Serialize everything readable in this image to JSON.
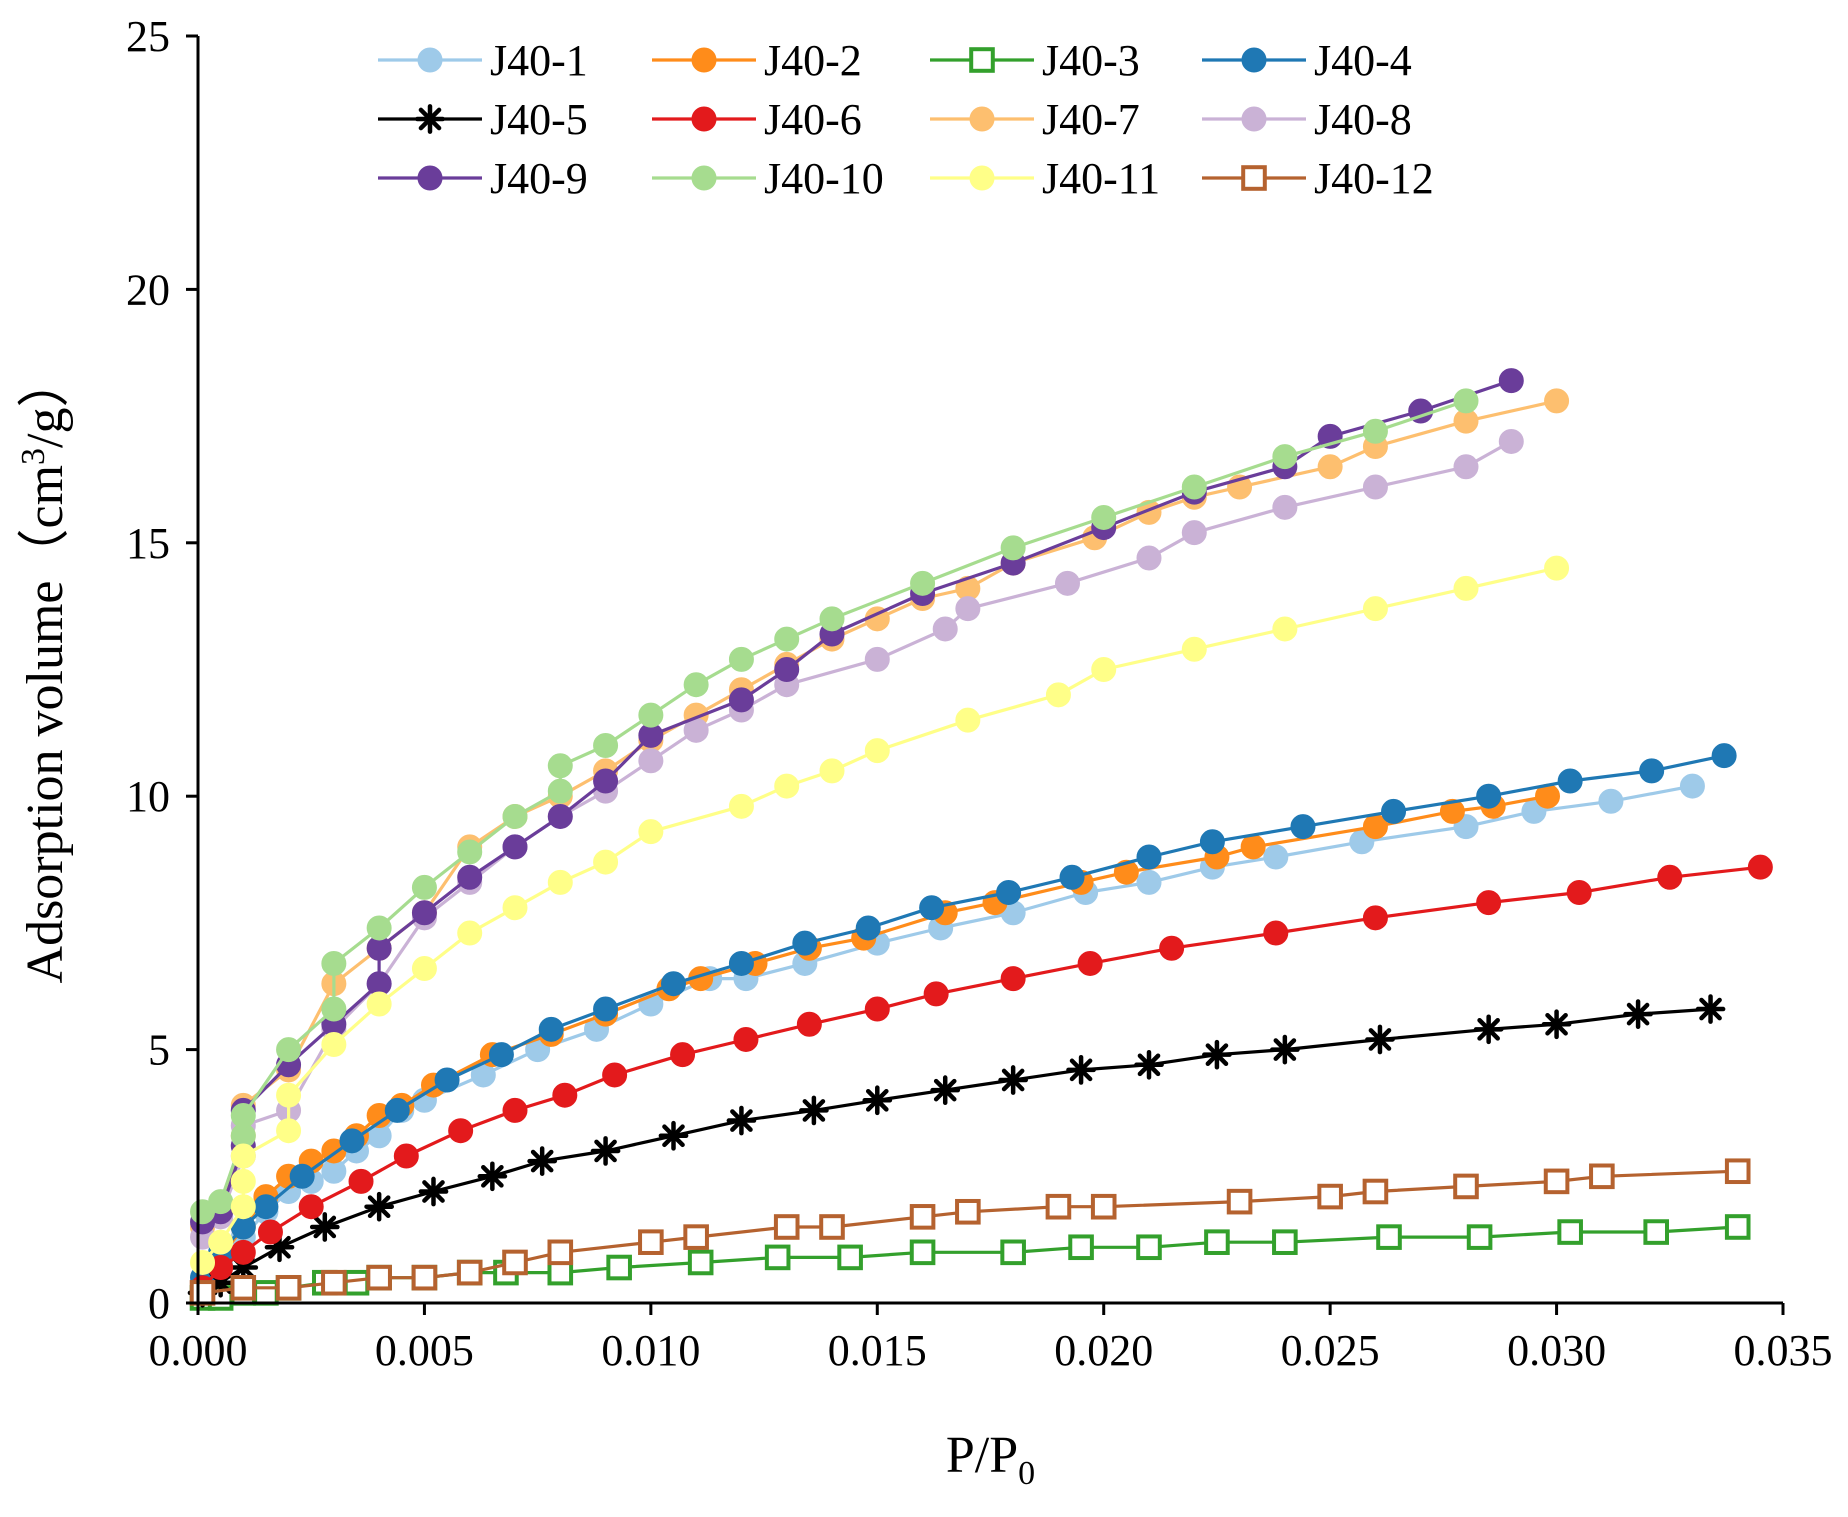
{
  "chart_data": {
    "type": "line",
    "title": "",
    "xlabel": "P/P",
    "xlabel_sub": "0",
    "ylabel": "Adsorption volume（cm",
    "ylabel_sup": "3",
    "ylabel_end": "/g）",
    "xlim": [
      0,
      0.035
    ],
    "ylim": [
      0,
      25
    ],
    "x_ticks": [
      0,
      0.005,
      0.01,
      0.015,
      0.02,
      0.025,
      0.03,
      0.035
    ],
    "x_tick_labels": [
      "0.000",
      "0.005",
      "0.010",
      "0.015",
      "0.020",
      "0.025",
      "0.030",
      "0.035"
    ],
    "y_ticks": [
      0,
      5,
      10,
      15,
      20,
      25
    ],
    "y_tick_labels": [
      "0",
      "5",
      "10",
      "15",
      "20",
      "25"
    ],
    "grid": false,
    "legend_position": "top",
    "series": [
      {
        "name": "J40-1",
        "color": "#9ecae9",
        "marker": "circle",
        "x": [
          0.0001,
          0.0005,
          0.001,
          0.0015,
          0.002,
          0.0025,
          0.003,
          0.0035,
          0.004,
          0.0045,
          0.005,
          0.0063,
          0.0075,
          0.0088,
          0.01,
          0.0113,
          0.0121,
          0.0134,
          0.015,
          0.0164,
          0.018,
          0.0196,
          0.021,
          0.0224,
          0.0238,
          0.0257,
          0.028,
          0.0295,
          0.0312,
          0.033
        ],
        "y": [
          0.3,
          0.8,
          1.3,
          1.8,
          2.2,
          2.4,
          2.6,
          3.0,
          3.3,
          3.8,
          4.0,
          4.5,
          5.0,
          5.4,
          5.9,
          6.4,
          6.4,
          6.7,
          7.1,
          7.4,
          7.7,
          8.1,
          8.3,
          8.6,
          8.8,
          9.1,
          9.4,
          9.7,
          9.9,
          10.2
        ]
      },
      {
        "name": "J40-2",
        "color": "#ff8c1a",
        "marker": "circle",
        "x": [
          0.0001,
          0.0005,
          0.001,
          0.0015,
          0.002,
          0.0025,
          0.003,
          0.0035,
          0.004,
          0.0045,
          0.0052,
          0.0065,
          0.0078,
          0.009,
          0.0104,
          0.0111,
          0.0123,
          0.0135,
          0.0147,
          0.0165,
          0.0176,
          0.0195,
          0.0205,
          0.0225,
          0.0233,
          0.026,
          0.0277,
          0.0286,
          0.0298
        ],
        "y": [
          0.4,
          0.9,
          1.5,
          2.1,
          2.5,
          2.8,
          3.0,
          3.3,
          3.7,
          3.9,
          4.3,
          4.9,
          5.3,
          5.7,
          6.2,
          6.4,
          6.7,
          7.0,
          7.2,
          7.7,
          7.9,
          8.3,
          8.5,
          8.8,
          9.0,
          9.4,
          9.7,
          9.8,
          10.0
        ]
      },
      {
        "name": "J40-3",
        "color": "#33a02c",
        "marker": "square-open",
        "x": [
          0.0001,
          0.0005,
          0.001,
          0.0015,
          0.002,
          0.0028,
          0.0035,
          0.004,
          0.005,
          0.006,
          0.0068,
          0.008,
          0.0093,
          0.0111,
          0.0128,
          0.0144,
          0.016,
          0.018,
          0.0195,
          0.021,
          0.0225,
          0.024,
          0.0263,
          0.0283,
          0.0303,
          0.0322,
          0.034
        ],
        "y": [
          0.1,
          0.1,
          0.2,
          0.2,
          0.3,
          0.4,
          0.4,
          0.5,
          0.5,
          0.6,
          0.6,
          0.6,
          0.7,
          0.8,
          0.9,
          0.9,
          1.0,
          1.0,
          1.1,
          1.1,
          1.2,
          1.2,
          1.3,
          1.3,
          1.4,
          1.4,
          1.5
        ]
      },
      {
        "name": "J40-4",
        "color": "#1f78b4",
        "marker": "circle",
        "x": [
          0.0001,
          0.0005,
          0.001,
          0.0015,
          0.0023,
          0.0034,
          0.0044,
          0.0055,
          0.0067,
          0.0078,
          0.009,
          0.0105,
          0.012,
          0.0134,
          0.0148,
          0.0162,
          0.0179,
          0.0193,
          0.021,
          0.0224,
          0.0244,
          0.0264,
          0.0285,
          0.0303,
          0.0321,
          0.0337
        ],
        "y": [
          0.5,
          1.0,
          1.5,
          1.9,
          2.5,
          3.2,
          3.8,
          4.4,
          4.9,
          5.4,
          5.8,
          6.3,
          6.7,
          7.1,
          7.4,
          7.8,
          8.1,
          8.4,
          8.8,
          9.1,
          9.4,
          9.7,
          10.0,
          10.3,
          10.5,
          10.8
        ]
      },
      {
        "name": "J40-5",
        "color": "#000000",
        "marker": "asterisk",
        "x": [
          0.0001,
          0.0005,
          0.001,
          0.0018,
          0.0028,
          0.004,
          0.0052,
          0.0065,
          0.0076,
          0.009,
          0.0105,
          0.012,
          0.0136,
          0.015,
          0.0165,
          0.018,
          0.0195,
          0.021,
          0.0225,
          0.024,
          0.0261,
          0.0285,
          0.03,
          0.0318,
          0.0334
        ],
        "y": [
          0.2,
          0.4,
          0.7,
          1.1,
          1.5,
          1.9,
          2.2,
          2.5,
          2.8,
          3.0,
          3.3,
          3.6,
          3.8,
          4.0,
          4.2,
          4.4,
          4.6,
          4.7,
          4.9,
          5.0,
          5.2,
          5.4,
          5.5,
          5.7,
          5.8
        ]
      },
      {
        "name": "J40-6",
        "color": "#e31a1c",
        "marker": "circle",
        "x": [
          0.0001,
          0.0005,
          0.001,
          0.0016,
          0.0025,
          0.0036,
          0.0046,
          0.0058,
          0.007,
          0.0081,
          0.0092,
          0.0107,
          0.0121,
          0.0135,
          0.015,
          0.0163,
          0.018,
          0.0197,
          0.0215,
          0.0238,
          0.026,
          0.0285,
          0.0305,
          0.0325,
          0.0345
        ],
        "y": [
          0.3,
          0.7,
          1.0,
          1.4,
          1.9,
          2.4,
          2.9,
          3.4,
          3.8,
          4.1,
          4.5,
          4.9,
          5.2,
          5.5,
          5.8,
          6.1,
          6.4,
          6.7,
          7.0,
          7.3,
          7.6,
          7.9,
          8.1,
          8.4,
          8.6
        ]
      },
      {
        "name": "J40-7",
        "color": "#fdbf6f",
        "marker": "circle",
        "x": [
          0.0001,
          0.0005,
          0.001,
          0.001,
          0.002,
          0.003,
          0.004,
          0.005,
          0.006,
          0.007,
          0.008,
          0.009,
          0.01,
          0.011,
          0.012,
          0.013,
          0.014,
          0.015,
          0.016,
          0.017,
          0.018,
          0.0198,
          0.021,
          0.022,
          0.023,
          0.025,
          0.026,
          0.028,
          0.03
        ],
        "y": [
          1.5,
          1.9,
          3.3,
          3.9,
          4.6,
          6.3,
          7.0,
          7.7,
          9.0,
          9.6,
          10.0,
          10.5,
          11.1,
          11.6,
          12.1,
          12.6,
          13.1,
          13.5,
          13.9,
          14.1,
          14.6,
          15.1,
          15.6,
          15.9,
          16.1,
          16.5,
          16.9,
          17.4,
          17.8
        ]
      },
      {
        "name": "J40-8",
        "color": "#cab2d6",
        "marker": "circle",
        "x": [
          0.0001,
          0.0005,
          0.001,
          0.001,
          0.002,
          0.003,
          0.004,
          0.005,
          0.006,
          0.007,
          0.008,
          0.009,
          0.01,
          0.011,
          0.012,
          0.013,
          0.015,
          0.0165,
          0.017,
          0.0192,
          0.021,
          0.022,
          0.024,
          0.026,
          0.028,
          0.029
        ],
        "y": [
          1.3,
          1.7,
          2.9,
          3.5,
          3.8,
          5.4,
          6.3,
          7.6,
          8.3,
          9.0,
          9.6,
          10.1,
          10.7,
          11.3,
          11.7,
          12.2,
          12.7,
          13.3,
          13.7,
          14.2,
          14.7,
          15.2,
          15.7,
          16.1,
          16.5,
          17.0
        ]
      },
      {
        "name": "J40-9",
        "color": "#6a3d9a",
        "marker": "circle",
        "x": [
          0.0001,
          0.0005,
          0.001,
          0.001,
          0.002,
          0.003,
          0.004,
          0.004,
          0.005,
          0.006,
          0.007,
          0.008,
          0.009,
          0.01,
          0.012,
          0.013,
          0.014,
          0.016,
          0.018,
          0.02,
          0.022,
          0.024,
          0.025,
          0.027,
          0.029
        ],
        "y": [
          1.6,
          1.8,
          3.1,
          3.8,
          4.7,
          5.5,
          6.3,
          7.0,
          7.7,
          8.4,
          9.0,
          9.6,
          10.3,
          11.2,
          11.9,
          12.5,
          13.2,
          14.0,
          14.6,
          15.3,
          16.0,
          16.5,
          17.1,
          17.6,
          18.2
        ]
      },
      {
        "name": "J40-10",
        "color": "#a6dc8f",
        "marker": "circle",
        "x": [
          0.0001,
          0.0005,
          0.001,
          0.001,
          0.002,
          0.003,
          0.003,
          0.004,
          0.005,
          0.006,
          0.007,
          0.008,
          0.008,
          0.009,
          0.01,
          0.011,
          0.012,
          0.013,
          0.014,
          0.016,
          0.018,
          0.02,
          0.022,
          0.024,
          0.026,
          0.028
        ],
        "y": [
          1.8,
          2.0,
          3.3,
          3.7,
          5.0,
          5.8,
          6.7,
          7.4,
          8.2,
          8.9,
          9.6,
          10.1,
          10.6,
          11.0,
          11.6,
          12.2,
          12.7,
          13.1,
          13.5,
          14.2,
          14.9,
          15.5,
          16.1,
          16.7,
          17.2,
          17.8
        ]
      },
      {
        "name": "J40-11",
        "color": "#ffff88",
        "marker": "circle",
        "x": [
          0.0001,
          0.0005,
          0.001,
          0.001,
          0.001,
          0.002,
          0.002,
          0.003,
          0.004,
          0.005,
          0.006,
          0.007,
          0.008,
          0.009,
          0.01,
          0.012,
          0.013,
          0.014,
          0.015,
          0.017,
          0.019,
          0.02,
          0.022,
          0.024,
          0.026,
          0.028,
          0.03
        ],
        "y": [
          0.8,
          1.2,
          1.9,
          2.4,
          2.9,
          3.4,
          4.1,
          5.1,
          5.9,
          6.6,
          7.3,
          7.8,
          8.3,
          8.7,
          9.3,
          9.8,
          10.2,
          10.5,
          10.9,
          11.5,
          12.0,
          12.5,
          12.9,
          13.3,
          13.7,
          14.1,
          14.5
        ]
      },
      {
        "name": "J40-12",
        "color": "#b5622f",
        "marker": "square-open",
        "x": [
          0.0001,
          0.001,
          0.002,
          0.003,
          0.004,
          0.005,
          0.006,
          0.007,
          0.008,
          0.01,
          0.011,
          0.013,
          0.014,
          0.016,
          0.017,
          0.019,
          0.02,
          0.023,
          0.025,
          0.026,
          0.028,
          0.03,
          0.031,
          0.034
        ],
        "y": [
          0.2,
          0.3,
          0.3,
          0.4,
          0.5,
          0.5,
          0.6,
          0.8,
          1.0,
          1.2,
          1.3,
          1.5,
          1.5,
          1.7,
          1.8,
          1.9,
          1.9,
          2.0,
          2.1,
          2.2,
          2.3,
          2.4,
          2.5,
          2.6
        ]
      }
    ]
  }
}
